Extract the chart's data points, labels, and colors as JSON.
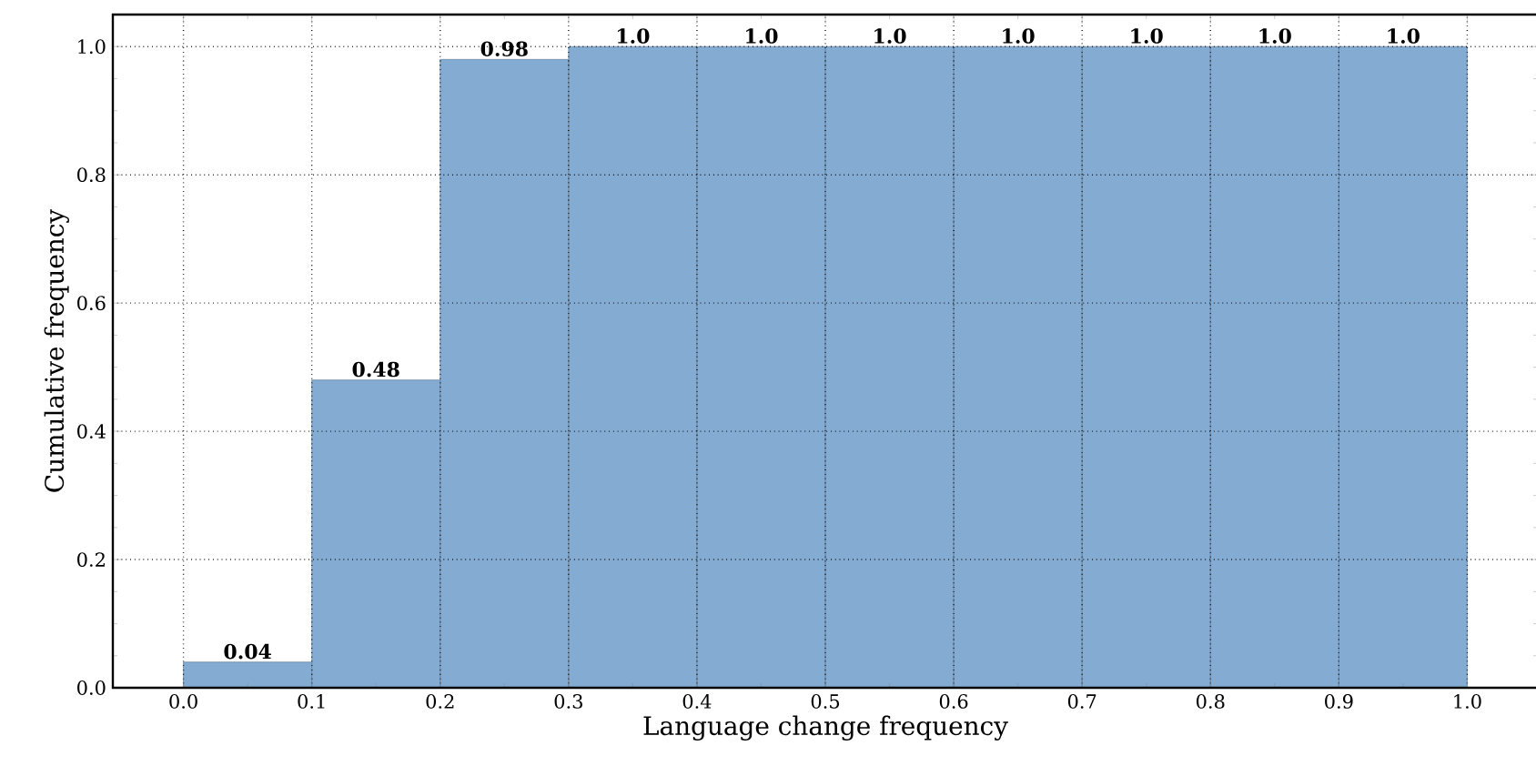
{
  "chart_data": {
    "type": "histogram",
    "xlabel": "Language change frequency",
    "ylabel": "Cumulative frequency",
    "bins": [
      0.0,
      0.1,
      0.2,
      0.3,
      0.4,
      0.5,
      0.6,
      0.7,
      0.8,
      0.9,
      1.0
    ],
    "values": [
      0.04,
      0.48,
      0.98,
      1.0,
      1.0,
      1.0,
      1.0,
      1.0,
      1.0,
      1.0
    ],
    "value_labels": [
      "0.04",
      "0.48",
      "0.98",
      "1.0",
      "1.0",
      "1.0",
      "1.0",
      "1.0",
      "1.0",
      "1.0"
    ],
    "color": "#84abd2",
    "xlim": [
      -0.055,
      1.055
    ],
    "ylim": [
      0,
      1.05
    ],
    "xticks": [
      {
        "value": 0.0,
        "label": "0.0"
      },
      0.1,
      0.2,
      0.3,
      0.4,
      0.5,
      0.6,
      0.7,
      0.8,
      0.9,
      {
        "value": 1.0,
        "label": "1.0"
      }
    ],
    "yticks": [
      {
        "value": 0.0,
        "label": "0.0"
      },
      0.2,
      0.4,
      0.6,
      0.8,
      {
        "value": 1.0,
        "label": "1.0"
      }
    ],
    "grid": true
  }
}
